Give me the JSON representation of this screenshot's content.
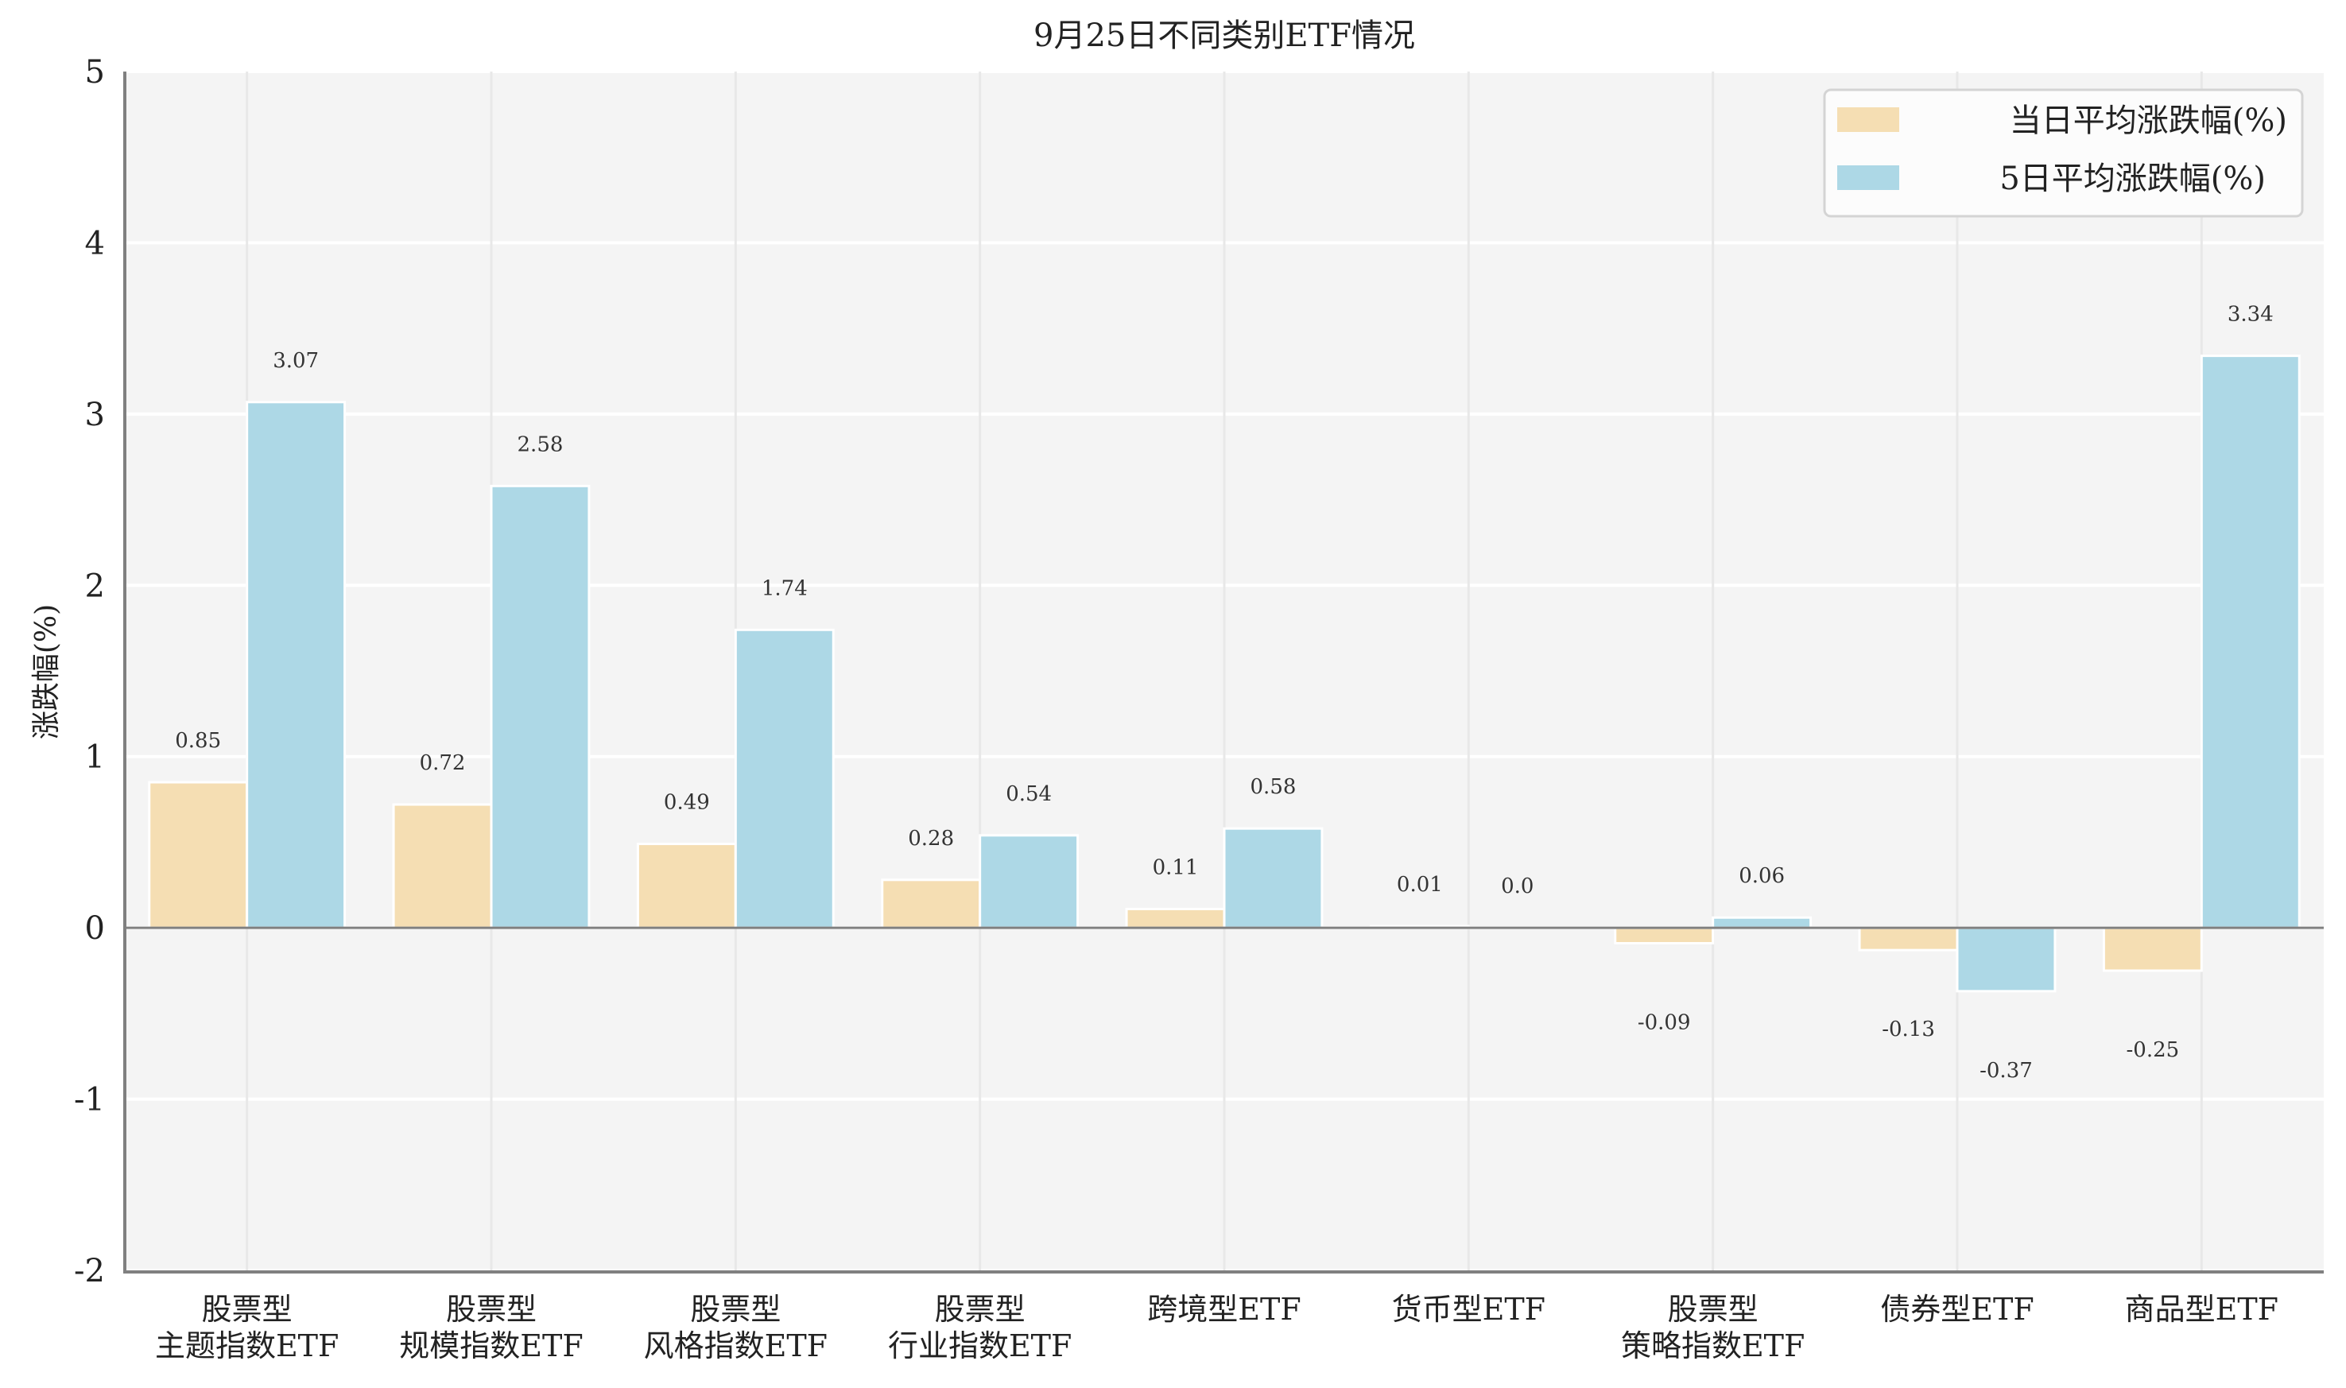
{
  "chart_data": {
    "type": "bar",
    "title": "9月25日不同类别ETF情况",
    "xlabel": "",
    "ylabel": "涨跌幅(%)",
    "ylim": [
      -2,
      5
    ],
    "yticks": [
      5,
      4,
      3,
      2,
      1,
      0,
      -1,
      -2
    ],
    "grid": true,
    "legend_position": "upper right",
    "categories": [
      [
        "股票型",
        "主题指数ETF"
      ],
      [
        "股票型",
        "规模指数ETF"
      ],
      [
        "股票型",
        "风格指数ETF"
      ],
      [
        "股票型",
        "行业指数ETF"
      ],
      [
        "跨境型ETF"
      ],
      [
        "货币型ETF"
      ],
      [
        "股票型",
        "策略指数ETF"
      ],
      [
        "债券型ETF"
      ],
      [
        "商品型ETF"
      ]
    ],
    "series": [
      {
        "name": "当日平均涨跌幅(%)",
        "color": "#F5DEB3",
        "values": [
          0.85,
          0.72,
          0.49,
          0.28,
          0.11,
          0.01,
          -0.09,
          -0.13,
          -0.25
        ],
        "labels": [
          "0.85",
          "0.72",
          "0.49",
          "0.28",
          "0.11",
          "0.01",
          "-0.09",
          "-0.13",
          "-0.25"
        ]
      },
      {
        "name": "5日平均涨跌幅(%)",
        "color": "#ADD8E6",
        "values": [
          3.07,
          2.58,
          1.74,
          0.54,
          0.58,
          0.0,
          0.06,
          -0.37,
          3.34
        ],
        "labels": [
          "3.07",
          "2.58",
          "1.74",
          "0.54",
          "0.58",
          "0.0",
          "0.06",
          "-0.37",
          "3.34"
        ]
      }
    ]
  },
  "colors": {
    "plot_bg": "#F4F4F4",
    "grid": "#FFFFFF",
    "vgrid": "#E8E8E8",
    "axis": "#808080",
    "text": "#222222"
  }
}
